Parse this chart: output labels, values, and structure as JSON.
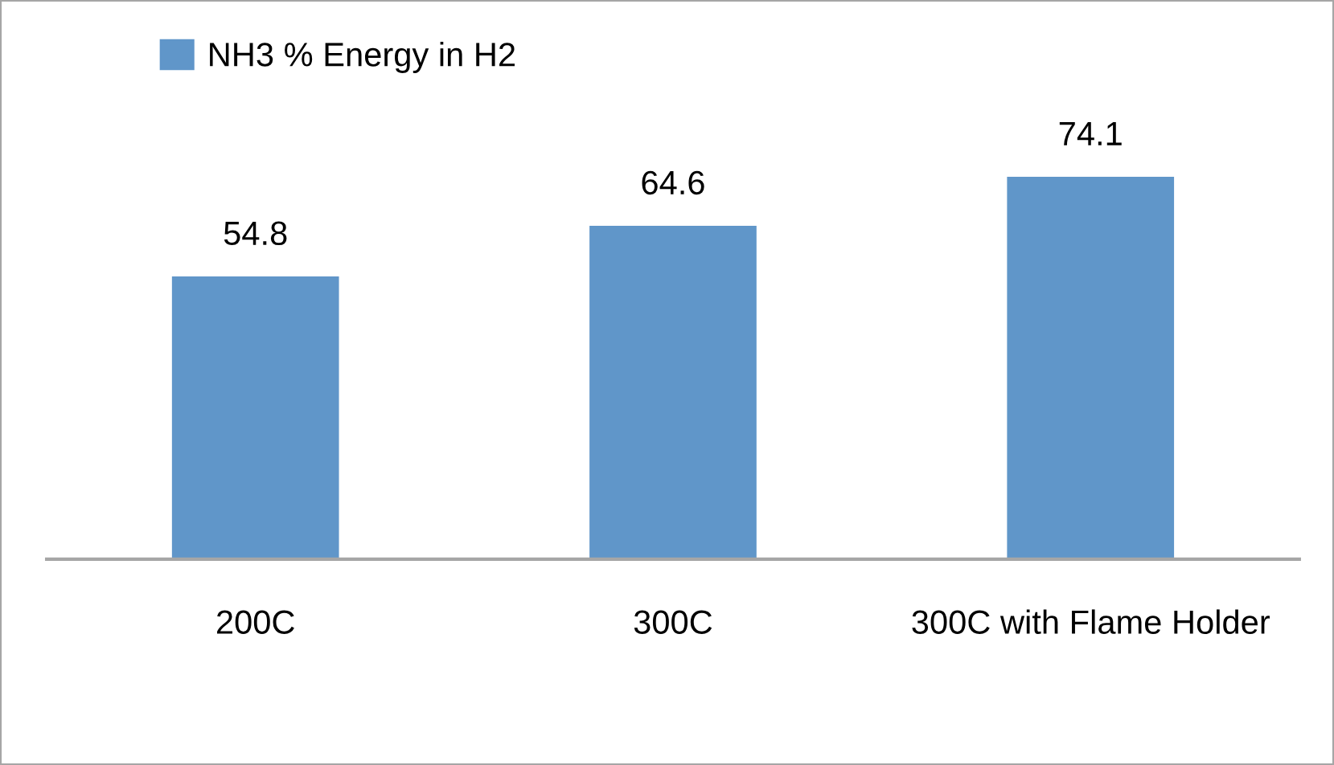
{
  "chart_data": {
    "type": "bar",
    "categories": [
      "200C",
      "300C",
      "300C with Flame Holder"
    ],
    "series": [
      {
        "name": "NH3 % Energy in H2",
        "color": "#6096c9",
        "values": [
          54.8,
          64.6,
          74.1
        ]
      }
    ],
    "data_labels": true,
    "legend": "top left",
    "grid": false,
    "tick_labels": "x"
  }
}
